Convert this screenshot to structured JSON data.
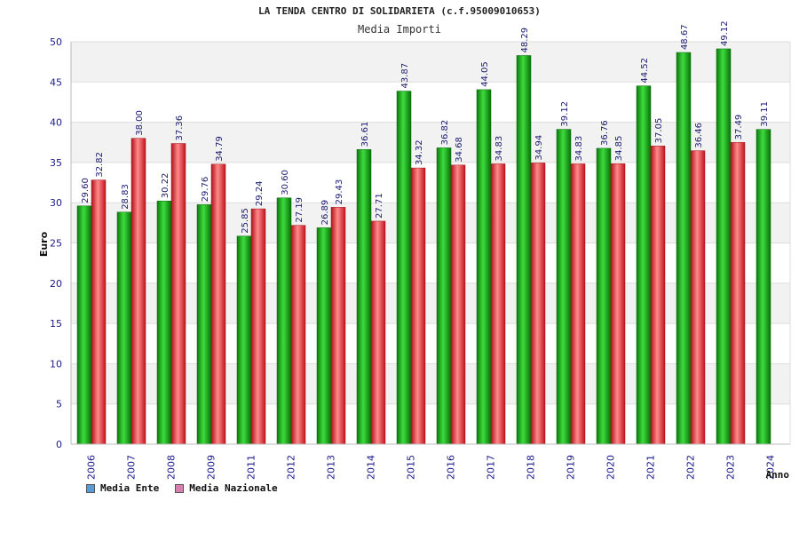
{
  "chart_data": {
    "type": "bar",
    "title": "LA TENDA CENTRO DI SOLIDARIETA (c.f.95009010653)",
    "subtitle": "Media Importi",
    "xlabel": "Anno",
    "ylabel": "Euro",
    "ylim": [
      0,
      50
    ],
    "yticks": [
      0,
      5,
      10,
      15,
      20,
      25,
      30,
      35,
      40,
      45,
      50
    ],
    "categories": [
      "2006",
      "2007",
      "2008",
      "2009",
      "2011",
      "2012",
      "2013",
      "2014",
      "2015",
      "2016",
      "2017",
      "2018",
      "2019",
      "2020",
      "2021",
      "2022",
      "2023",
      "2024"
    ],
    "series": [
      {
        "name": "Media Ente",
        "color": "#1aa61a",
        "values": [
          29.6,
          28.83,
          30.22,
          29.76,
          25.85,
          30.6,
          26.89,
          36.61,
          43.87,
          36.82,
          44.05,
          48.29,
          39.12,
          36.76,
          44.52,
          48.67,
          49.12,
          39.11
        ],
        "labels": [
          "29.60",
          "28.83",
          "30.22",
          "29.76",
          "25.85",
          "30.60",
          "26.89",
          "36.61",
          "43.87",
          "36.82",
          "44.05",
          "48.29",
          "39.12",
          "36.76",
          "44.52",
          "48.67",
          "49.12",
          "39.11"
        ]
      },
      {
        "name": "Media Nazionale",
        "color": "#e0202a",
        "values": [
          32.82,
          38.0,
          37.36,
          34.79,
          29.24,
          27.19,
          29.43,
          27.71,
          34.32,
          34.68,
          34.83,
          34.94,
          34.83,
          34.85,
          37.05,
          36.46,
          37.49,
          null
        ],
        "labels": [
          "32.82",
          "38.00",
          "37.36",
          "34.79",
          "29.24",
          "27.19",
          "29.43",
          "27.71",
          "34.32",
          "34.68",
          "34.83",
          "34.94",
          "34.83",
          "34.85",
          "37.05",
          "36.46",
          "37.49",
          ""
        ]
      }
    ],
    "legend": [
      {
        "label": "Media Ente",
        "color": "#5b9bd5"
      },
      {
        "label": "Media Nazionale",
        "color": "#d97fb0"
      }
    ],
    "grid": true
  }
}
